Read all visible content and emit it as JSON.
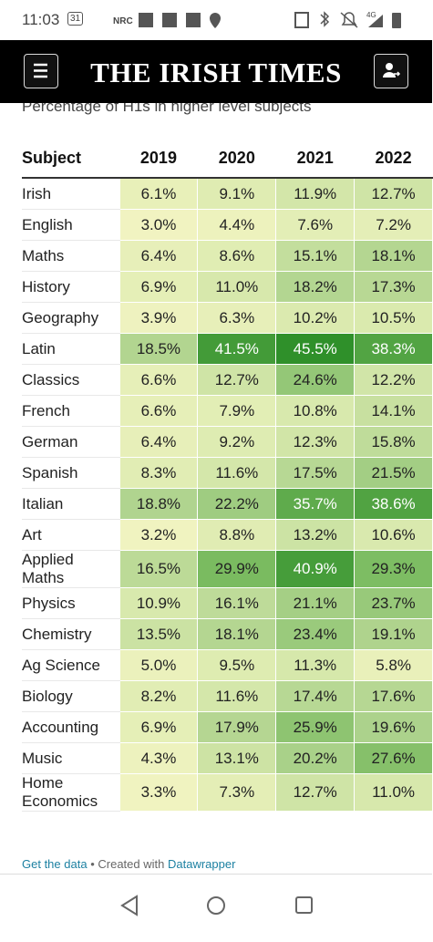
{
  "status_bar": {
    "time": "11:03",
    "calendar": "31",
    "nrc": "NRC",
    "network": "4G"
  },
  "header": {
    "title": "THE IRISH TIMES"
  },
  "subtitle": "Percentage of H1s in higher level subjects",
  "table": {
    "columns": [
      "Subject",
      "2019",
      "2020",
      "2021",
      "2022"
    ],
    "rows": [
      [
        "Irish",
        "6.1%",
        "9.1%",
        "11.9%",
        "12.7%"
      ],
      [
        "English",
        "3.0%",
        "4.4%",
        "7.6%",
        "7.2%"
      ],
      [
        "Maths",
        "6.4%",
        "8.6%",
        "15.1%",
        "18.1%"
      ],
      [
        "History",
        "6.9%",
        "11.0%",
        "18.2%",
        "17.3%"
      ],
      [
        "Geography",
        "3.9%",
        "6.3%",
        "10.2%",
        "10.5%"
      ],
      [
        "Latin",
        "18.5%",
        "41.5%",
        "45.5%",
        "38.3%"
      ],
      [
        "Classics",
        "6.6%",
        "12.7%",
        "24.6%",
        "12.2%"
      ],
      [
        "French",
        "6.6%",
        "7.9%",
        "10.8%",
        "14.1%"
      ],
      [
        "German",
        "6.4%",
        "9.2%",
        "12.3%",
        "15.8%"
      ],
      [
        "Spanish",
        "8.3%",
        "11.6%",
        "17.5%",
        "21.5%"
      ],
      [
        "Italian",
        "18.8%",
        "22.2%",
        "35.7%",
        "38.6%"
      ],
      [
        "Art",
        "3.2%",
        "8.8%",
        "13.2%",
        "10.6%"
      ],
      [
        "Applied Maths",
        "16.5%",
        "29.9%",
        "40.9%",
        "29.3%"
      ],
      [
        "Physics",
        "10.9%",
        "16.1%",
        "21.1%",
        "23.7%"
      ],
      [
        "Chemistry",
        "13.5%",
        "18.1%",
        "23.4%",
        "19.1%"
      ],
      [
        "Ag Science",
        "5.0%",
        "9.5%",
        "11.3%",
        "5.8%"
      ],
      [
        "Biology",
        "8.2%",
        "11.6%",
        "17.4%",
        "17.6%"
      ],
      [
        "Accounting",
        "6.9%",
        "17.9%",
        "25.9%",
        "19.6%"
      ],
      [
        "Music",
        "4.3%",
        "13.1%",
        "20.2%",
        "27.6%"
      ],
      [
        "Home Economics",
        "3.3%",
        "7.3%",
        "12.7%",
        "11.0%"
      ]
    ]
  },
  "footer": {
    "data_link": "Get the data",
    "separator": "•",
    "created": "Created with",
    "tool_link": "Datawrapper"
  }
}
